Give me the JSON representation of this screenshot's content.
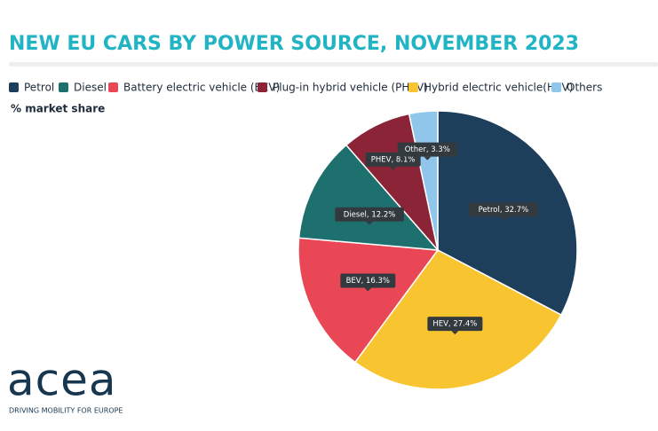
{
  "chart_data": {
    "type": "pie",
    "title": "NEW EU CARS BY POWER SOURCE, NOVEMBER 2023",
    "subtitle": "% market share",
    "categories": [
      "Petrol",
      "Diesel",
      "Battery electric vehicle (BEV)",
      "Plug-in hybrid vehicle (PHEV)",
      "Hybrid electric vehicle(HEV)",
      "Others"
    ],
    "values": [
      32.7,
      12.2,
      16.3,
      8.1,
      27.4,
      3.3
    ],
    "value_labels": [
      "Petrol, 32.7%",
      "Diesel, 12.2%",
      "BEV, 16.3%",
      "PHEV, 8.1%",
      "HEV, 27.4%",
      "Other, 3.3%"
    ],
    "colors": [
      "#1d3f5c",
      "#1d706e",
      "#e94756",
      "#8c2438",
      "#f8c42f",
      "#8fc6ea"
    ]
  },
  "logo": {
    "name": "acea",
    "tagline": "DRIVING MOBILITY FOR EUROPE"
  }
}
